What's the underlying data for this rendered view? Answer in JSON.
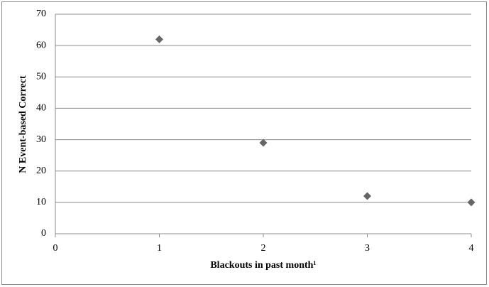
{
  "chart_data": {
    "type": "scatter",
    "x_label": "Blackouts in past month¹",
    "y_label": "N Event-based Correct",
    "x": [
      1,
      2,
      3,
      4
    ],
    "values": [
      62,
      29,
      12,
      10
    ],
    "color": "#666666",
    "marker": "diamond",
    "xlim": [
      0,
      4
    ],
    "xticks": [
      0,
      1,
      2,
      3,
      4
    ],
    "ylim": [
      0,
      70
    ],
    "yticks": [
      0,
      10,
      20,
      30,
      40,
      50,
      60,
      70
    ],
    "grid": true
  }
}
